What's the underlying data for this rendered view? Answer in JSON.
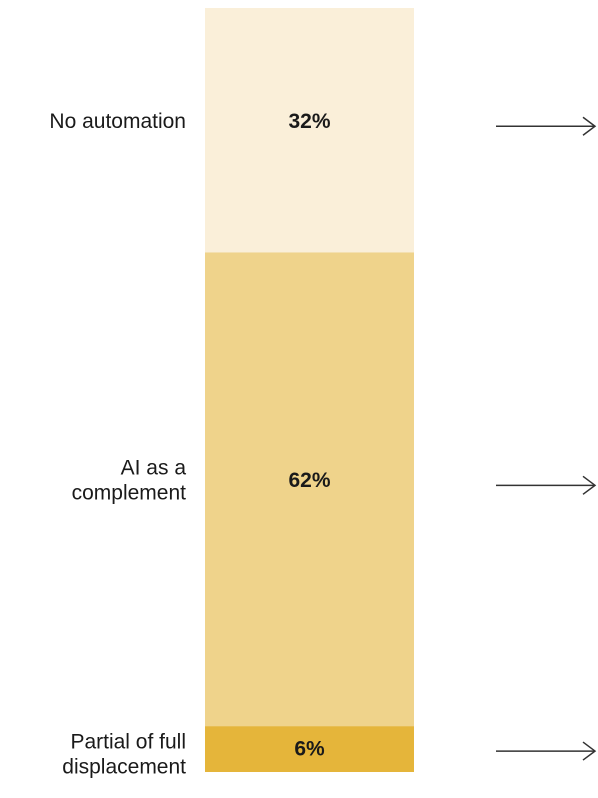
{
  "chart_data": {
    "type": "bar",
    "stacked": true,
    "orientation": "vertical",
    "categories": [
      "No automation",
      "AI as a complement",
      "Partial of full displacement"
    ],
    "label_lines": [
      [
        "No automation"
      ],
      [
        "AI as a",
        "complement"
      ],
      [
        "Partial of full",
        "displacement"
      ]
    ],
    "values": [
      32,
      62,
      6
    ],
    "value_labels": [
      "32%",
      "62%",
      "6%"
    ],
    "colors": [
      "#faefd9",
      "#efd38b",
      "#e5b53a"
    ],
    "unit": "%",
    "title": "",
    "xlabel": "",
    "ylabel": "",
    "ylim": [
      0,
      100
    ],
    "grid": false,
    "legend": "none",
    "arrows": true
  }
}
